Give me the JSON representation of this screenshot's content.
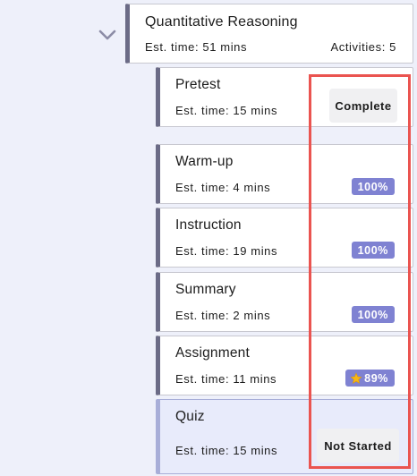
{
  "module": {
    "title": "Quantitative Reasoning",
    "est_time": "Est. time: 51 mins",
    "activities_count": "Activities: 5"
  },
  "icons": {
    "collapse": "chevron-down-icon",
    "star": "star-icon"
  },
  "colors": {
    "badge": "#7f82d2",
    "active_border": "#141a78",
    "highlight": "#ea5450",
    "star": "#f7b614"
  },
  "activities": [
    {
      "title": "Pretest",
      "est_time": "Est. time: 15 mins",
      "status": "Complete"
    },
    {
      "title": "Warm-up",
      "est_time": "Est. time: 4 mins",
      "progress": "100%"
    },
    {
      "title": "Instruction",
      "est_time": "Est. time: 19 mins",
      "progress": "100%"
    },
    {
      "title": "Summary",
      "est_time": "Est. time: 2 mins",
      "progress": "100%"
    },
    {
      "title": "Assignment",
      "est_time": "Est. time: 11 mins",
      "progress": "89%"
    },
    {
      "title": "Quiz",
      "est_time": "Est. time: 15 mins",
      "status": "Not Started"
    }
  ]
}
